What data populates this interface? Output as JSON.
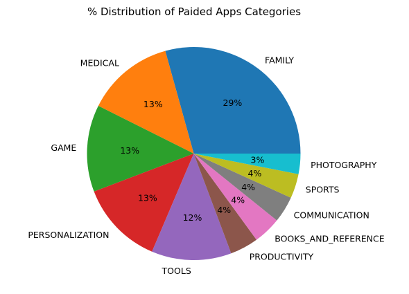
{
  "chart_data": {
    "type": "pie",
    "title": "% Distribution of Paided Apps Categories",
    "categories": [
      "FAMILY",
      "MEDICAL",
      "GAME",
      "PERSONALIZATION",
      "TOOLS",
      "PRODUCTIVITY",
      "BOOKS_AND_REFERENCE",
      "COMMUNICATION",
      "SPORTS",
      "PHOTOGRAPHY"
    ],
    "values": [
      29.3,
      13.3,
      13.2,
      12.8,
      12.1,
      4.3,
      4.2,
      4.0,
      3.7,
      3.1
    ],
    "value_labels": [
      "29%",
      "13%",
      "13%",
      "13%",
      "12%",
      "4%",
      "4%",
      "4%",
      "4%",
      "3%"
    ],
    "colors": [
      "#1f77b4",
      "#ff7f0e",
      "#2ca02c",
      "#d62728",
      "#9467bd",
      "#8c564b",
      "#e377c2",
      "#7f7f7f",
      "#bcbd22",
      "#17becf"
    ],
    "start_angle_deg": 0,
    "direction": "counterclockwise",
    "legend": "none"
  }
}
